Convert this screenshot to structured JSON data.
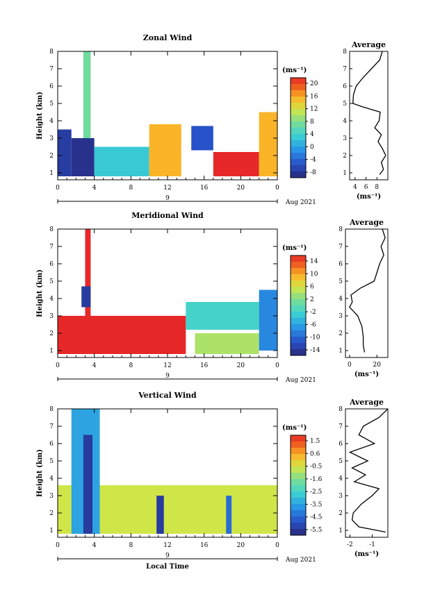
{
  "panels": [
    {
      "title": "Zonal Wind",
      "ylabel": "Height (km)",
      "yticks": [
        "1",
        "2",
        "3",
        "4",
        "5",
        "6",
        "7",
        "8"
      ],
      "xticks": [
        "0",
        "4",
        "8",
        "12",
        "16",
        "20",
        "0"
      ],
      "date_day": "9",
      "date_right": "Aug 2021",
      "colorbar_unit": "(ms⁻¹)",
      "colorbar_ticks": [
        "20",
        "16",
        "12",
        "8",
        "4",
        "0",
        "-4",
        "-8"
      ],
      "avg_title": "Average",
      "avg_yticks": [
        "1",
        "2",
        "3",
        "4",
        "5",
        "6",
        "7",
        "8"
      ],
      "avg_xticks": [
        "4",
        "6",
        "8"
      ],
      "avg_xlabel": "(ms⁻¹)"
    },
    {
      "title": "Meridional Wind",
      "ylabel": "Height (km)",
      "yticks": [
        "1",
        "2",
        "3",
        "4",
        "5",
        "6",
        "7",
        "8"
      ],
      "xticks": [
        "0",
        "4",
        "8",
        "12",
        "16",
        "20",
        "0"
      ],
      "date_day": "9",
      "date_right": "Aug 2021",
      "colorbar_unit": "(ms⁻¹)",
      "colorbar_ticks": [
        "14",
        "10",
        "6",
        "2",
        "-2",
        "-6",
        "-10",
        "-14"
      ],
      "avg_title": "Average",
      "avg_yticks": [
        "1",
        "2",
        "3",
        "4",
        "5",
        "6",
        "7",
        "8"
      ],
      "avg_xticks": [
        "0",
        "20"
      ],
      "avg_xlabel": "(ms⁻¹)"
    },
    {
      "title": "Vertical Wind",
      "ylabel": "Height (km)",
      "yticks": [
        "1",
        "2",
        "3",
        "4",
        "5",
        "6",
        "7",
        "8"
      ],
      "xticks": [
        "0",
        "4",
        "8",
        "12",
        "16",
        "20",
        "0"
      ],
      "date_day": "9",
      "date_right": "Aug 2021",
      "colorbar_unit": "(ms⁻¹)",
      "colorbar_ticks": [
        "1.5",
        "0.6",
        "-0.5",
        "-1.6",
        "-2.5",
        "-3.5",
        "-4.5",
        "-5.5"
      ],
      "avg_title": "Average",
      "avg_yticks": [
        "1",
        "2",
        "3",
        "4",
        "5",
        "6",
        "7",
        "8"
      ],
      "avg_xticks": [
        "-2",
        "-1"
      ],
      "avg_xlabel": "(ms⁻¹)",
      "xlabel": "Local Time"
    }
  ],
  "chart_data": [
    {
      "type": "heatmap",
      "title": "Zonal Wind",
      "xlabel": "",
      "ylabel": "Height (km)",
      "xlim": [
        0,
        24
      ],
      "ylim": [
        0.6,
        8
      ],
      "colorbar": {
        "unit": "(ms⁻¹)",
        "min": -8,
        "max": 22
      },
      "regions": [
        {
          "x": [
            0,
            1.5
          ],
          "y": [
            0.8,
            3.5
          ],
          "value": -6
        },
        {
          "x": [
            1.5,
            4
          ],
          "y": [
            0.8,
            3.0
          ],
          "value": -7
        },
        {
          "x": [
            2.8,
            3.6
          ],
          "y": [
            3.0,
            8.0
          ],
          "value": 8
        },
        {
          "x": [
            4,
            10
          ],
          "y": [
            0.8,
            2.5
          ],
          "value": 4
        },
        {
          "x": [
            10,
            13.5
          ],
          "y": [
            0.8,
            3.8
          ],
          "value": 16
        },
        {
          "x": [
            14.6,
            17
          ],
          "y": [
            2.3,
            3.7
          ],
          "value": -4
        },
        {
          "x": [
            17,
            22
          ],
          "y": [
            0.8,
            2.2
          ],
          "value": 22
        },
        {
          "x": [
            22,
            24
          ],
          "y": [
            0.8,
            4.5
          ],
          "value": 16
        }
      ],
      "average_profile": {
        "xlabel": "(ms⁻¹)",
        "xlim": [
          3,
          10
        ],
        "height": [
          0.9,
          1.2,
          1.6,
          2.0,
          2.4,
          2.8,
          3.2,
          3.6,
          4.0,
          4.5,
          4.8,
          5.0,
          5.5,
          6.0,
          6.5,
          7.0,
          7.5,
          8.0
        ],
        "value": [
          8.5,
          9.2,
          8.8,
          9.6,
          9.0,
          8.2,
          8.8,
          7.6,
          8.4,
          8.6,
          5.4,
          3.6,
          3.7,
          4.2,
          5.5,
          7.0,
          8.5,
          9.0
        ]
      }
    },
    {
      "type": "heatmap",
      "title": "Meridional Wind",
      "xlabel": "",
      "ylabel": "Height (km)",
      "xlim": [
        0,
        24
      ],
      "ylim": [
        0.6,
        8
      ],
      "colorbar": {
        "unit": "(ms⁻¹)",
        "min": -16,
        "max": 16
      },
      "regions": [
        {
          "x": [
            0,
            14
          ],
          "y": [
            0.8,
            3.0
          ],
          "value": 16
        },
        {
          "x": [
            3,
            3.6
          ],
          "y": [
            3.0,
            8.0
          ],
          "value": 16
        },
        {
          "x": [
            2.6,
            3.6
          ],
          "y": [
            3.5,
            4.7
          ],
          "value": -14
        },
        {
          "x": [
            14,
            22
          ],
          "y": [
            2.2,
            3.8
          ],
          "value": -2
        },
        {
          "x": [
            15,
            22
          ],
          "y": [
            0.8,
            2.0
          ],
          "value": 4
        },
        {
          "x": [
            22,
            24
          ],
          "y": [
            1.0,
            4.5
          ],
          "value": -8
        }
      ],
      "average_profile": {
        "xlabel": "(ms⁻¹)",
        "xlim": [
          -3,
          28
        ],
        "height": [
          0.9,
          1.3,
          1.8,
          2.4,
          3.0,
          3.5,
          3.8,
          4.2,
          4.6,
          5.0,
          5.5,
          6.0,
          6.5,
          7.0,
          7.5,
          8.0
        ],
        "value": [
          11,
          10,
          10,
          9,
          6,
          0,
          2,
          1,
          8,
          18,
          20,
          22,
          25,
          23,
          26,
          24
        ]
      }
    },
    {
      "type": "heatmap",
      "title": "Vertical Wind",
      "xlabel": "Local Time",
      "ylabel": "Height (km)",
      "xlim": [
        0,
        24
      ],
      "ylim": [
        0.6,
        8
      ],
      "colorbar": {
        "unit": "(ms⁻¹)",
        "min": -6,
        "max": 2
      },
      "regions": [
        {
          "x": [
            0,
            24
          ],
          "y": [
            0.8,
            3.6
          ],
          "value": -0.6
        },
        {
          "x": [
            1.5,
            4.6
          ],
          "y": [
            0.8,
            8.0
          ],
          "value": -3.5
        },
        {
          "x": [
            2.8,
            3.8
          ],
          "y": [
            0.8,
            6.5
          ],
          "value": -5.5
        },
        {
          "x": [
            10.8,
            11.6
          ],
          "y": [
            0.8,
            3.0
          ],
          "value": -5.5
        },
        {
          "x": [
            18.4,
            19.0
          ],
          "y": [
            0.8,
            3.0
          ],
          "value": -4.5
        }
      ],
      "average_profile": {
        "xlabel": "(ms⁻¹)",
        "xlim": [
          -2.2,
          -0.3
        ],
        "height": [
          0.9,
          1.2,
          1.6,
          2.0,
          2.5,
          3.0,
          3.4,
          3.8,
          4.2,
          4.6,
          5.0,
          5.5,
          6.0,
          6.5,
          7.0,
          7.5,
          8.0
        ],
        "value": [
          -0.4,
          -1.6,
          -1.9,
          -1.85,
          -1.5,
          -1.0,
          -0.7,
          -1.8,
          -1.3,
          -1.9,
          -1.2,
          -2.0,
          -0.9,
          -1.6,
          -1.4,
          -0.7,
          -0.3
        ]
      }
    }
  ]
}
